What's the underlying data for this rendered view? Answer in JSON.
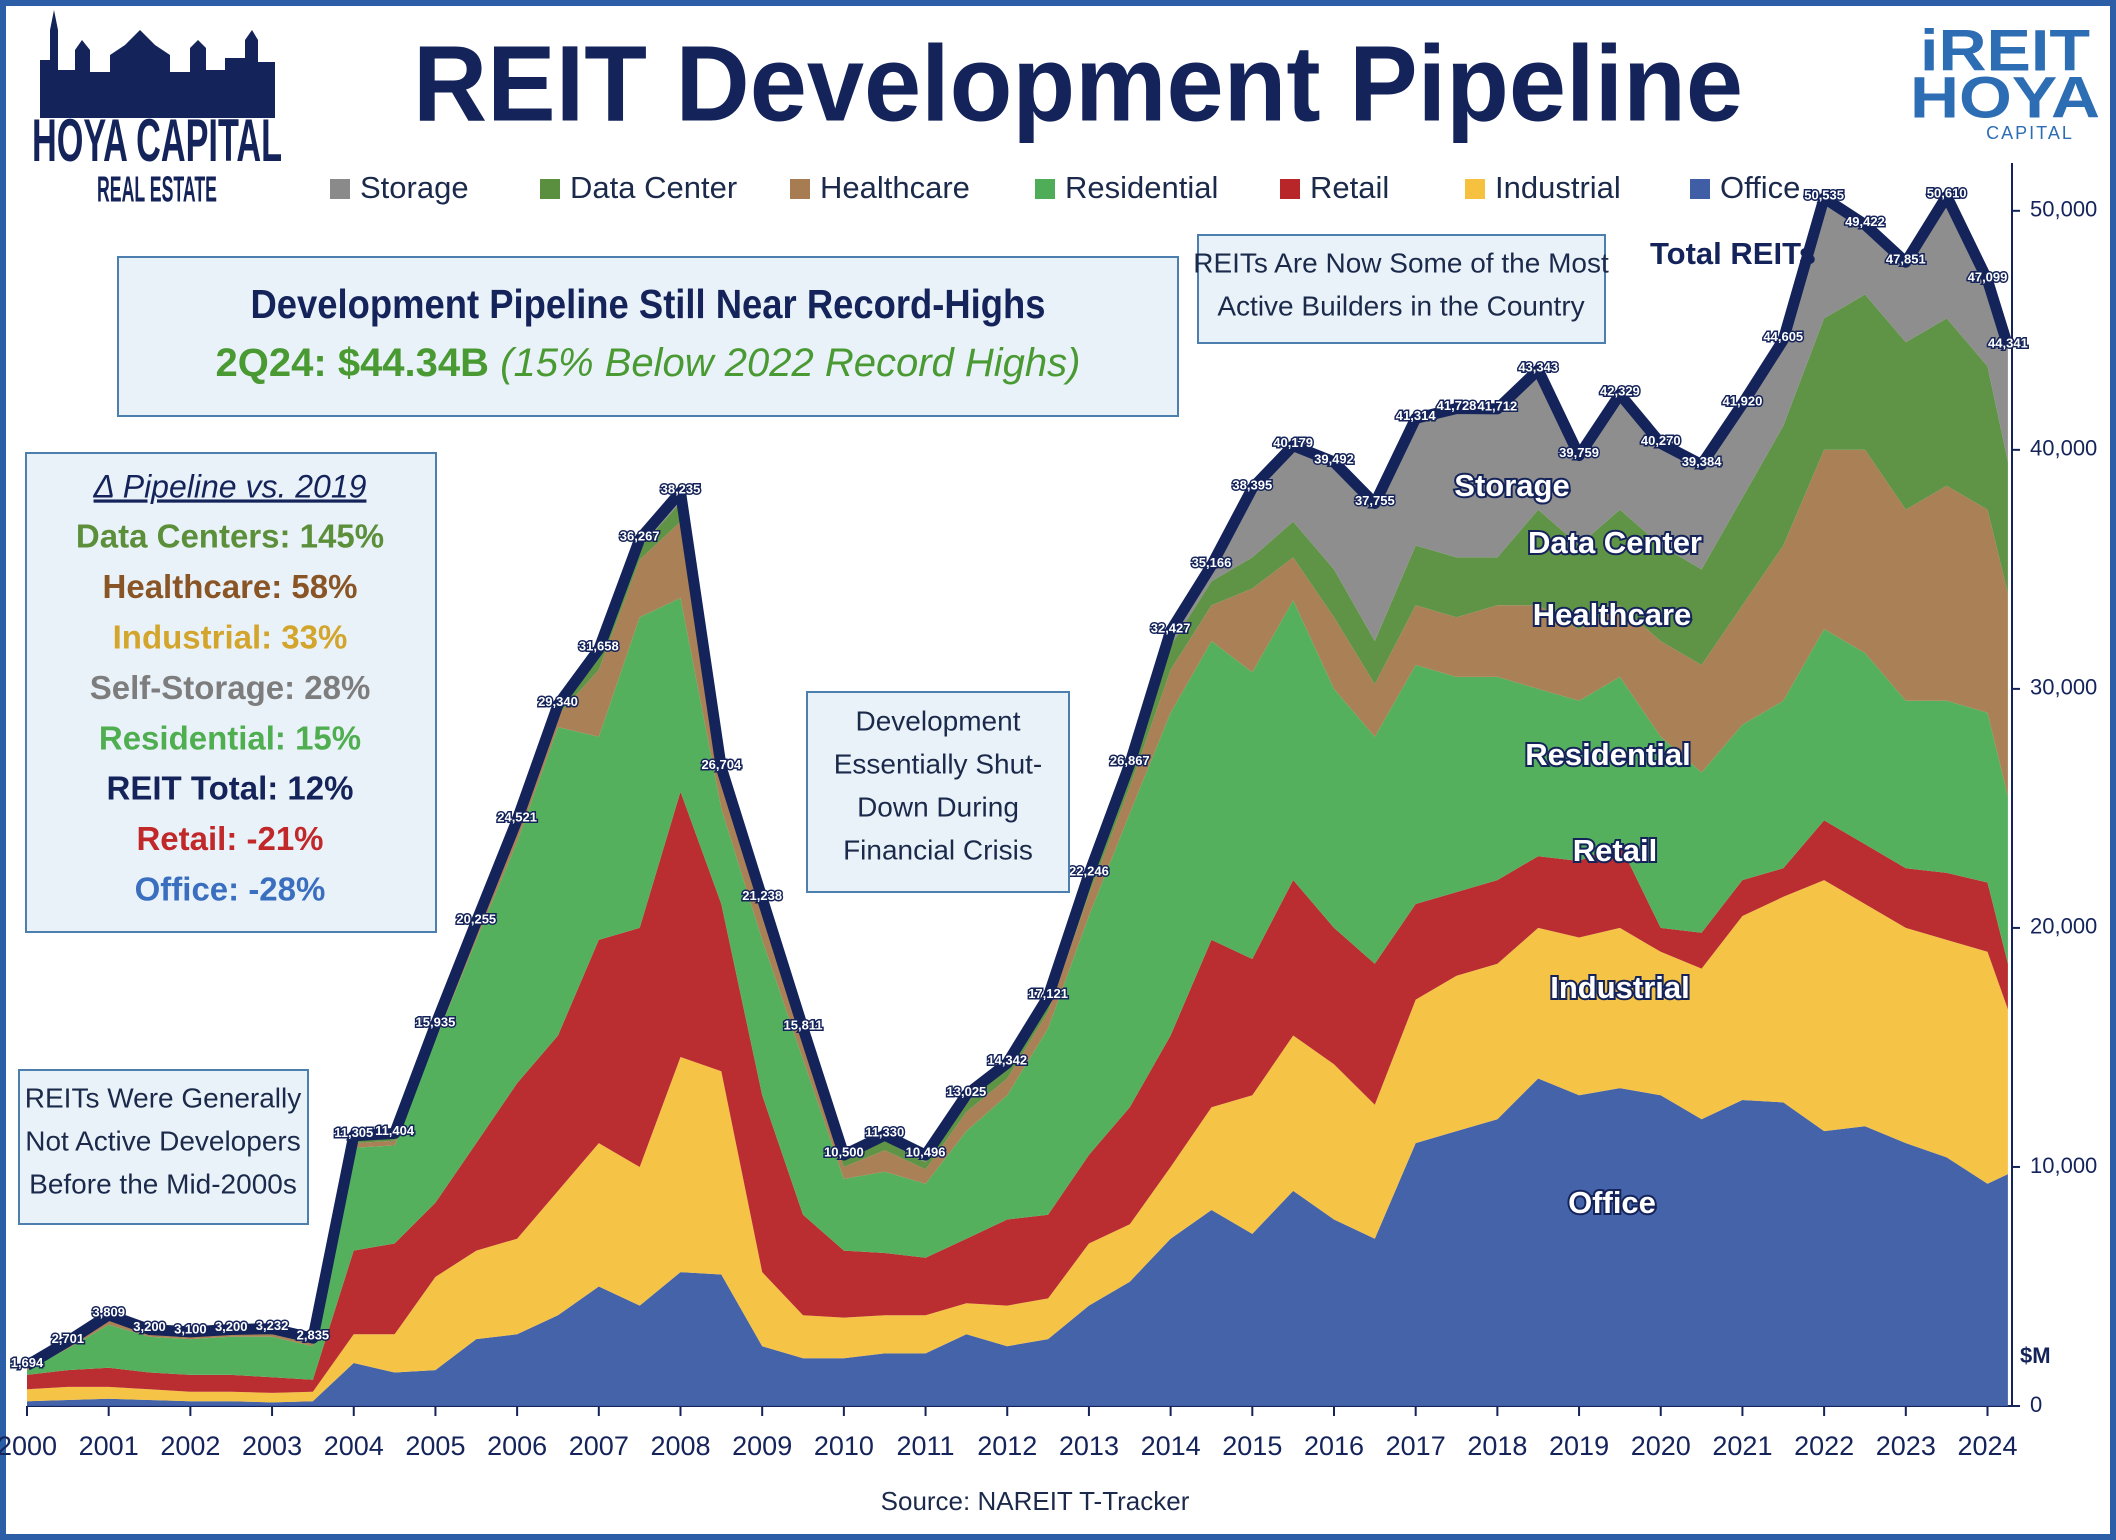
{
  "chart_data": {
    "type": "stacked-area",
    "title": "REIT Development Pipeline",
    "logos": {
      "left_top": "HOYA CAPITAL",
      "left_bottom": "REAL ESTATE",
      "right_top": "iREIT",
      "right_middle": "HOYA",
      "right_bottom": "CAPITAL"
    },
    "headline": {
      "title": "Development Pipeline Still Near Record-Highs",
      "value": "2Q24: $44.34B",
      "note": "(15% Below 2022 Record Highs)"
    },
    "delta_box": {
      "title": "Δ Pipeline vs. 2019",
      "items": [
        {
          "text": "Data Centers: 145%",
          "color": "#5b8f3a"
        },
        {
          "text": "Healthcare: 58%",
          "color": "#8a5526"
        },
        {
          "text": "Industrial: 33%",
          "color": "#d3a52c"
        },
        {
          "text": "Self-Storage: 28%",
          "color": "#7d7d7d"
        },
        {
          "text": "Residential: 15%",
          "color": "#4fae4f"
        },
        {
          "text": "REIT Total: 12%",
          "color": "#14235a"
        },
        {
          "text": "Retail: -21%",
          "color": "#c0282a"
        },
        {
          "text": "Office: -28%",
          "color": "#3a6fc0"
        }
      ]
    },
    "annotations": {
      "builders": [
        "REITs Are Now Some of the Most",
        "Active Builders in the Country"
      ],
      "crisis": [
        "Development",
        "Essentially Shut-",
        "Down During",
        "Financial Crisis"
      ],
      "early": [
        "REITs Were Generally",
        "Not Active Developers",
        "Before the Mid-2000s"
      ]
    },
    "source": "Source: NAREIT T-Tracker",
    "y_unit": "$M",
    "x": [
      2000,
      2000.5,
      2001,
      2001.5,
      2002,
      2002.5,
      2003,
      2003.5,
      2004,
      2004.5,
      2005,
      2005.5,
      2006,
      2006.5,
      2007,
      2007.5,
      2008,
      2008.5,
      2009,
      2009.5,
      2010,
      2010.5,
      2011,
      2011.5,
      2012,
      2012.5,
      2013,
      2013.5,
      2014,
      2014.5,
      2015,
      2015.5,
      2016,
      2016.5,
      2017,
      2017.5,
      2018,
      2018.5,
      2019,
      2019.5,
      2020,
      2020.5,
      2021,
      2021.5,
      2022,
      2022.5,
      2023,
      2023.5,
      2024,
      2024.25
    ],
    "xlim": [
      2000,
      2024.3
    ],
    "xticks": [
      2000,
      2001,
      2002,
      2003,
      2004,
      2005,
      2006,
      2007,
      2008,
      2009,
      2010,
      2011,
      2012,
      2013,
      2014,
      2015,
      2016,
      2017,
      2018,
      2019,
      2020,
      2021,
      2022,
      2023,
      2024
    ],
    "ylim": [
      0,
      52000
    ],
    "yticks": [
      0,
      {
        "value": 10000,
        "label": "10,000"
      },
      {
        "value": 20000,
        "label": "20,000"
      },
      {
        "value": 30000,
        "label": "30,000"
      },
      {
        "value": 40000,
        "label": "40,000"
      },
      {
        "value": 50000,
        "label": "50,000"
      }
    ],
    "series": [
      {
        "name": "Office",
        "color": "#3f5ea6",
        "values": [
          200,
          250,
          300,
          250,
          200,
          200,
          150,
          200,
          1800,
          1400,
          1500,
          2800,
          3000,
          3800,
          5000,
          4200,
          5600,
          5500,
          2500,
          2000,
          2000,
          2200,
          2200,
          3000,
          2500,
          2800,
          4200,
          5200,
          7000,
          8200,
          7200,
          9000,
          7800,
          7000,
          11000,
          11500,
          12000,
          13700,
          13000,
          13300,
          13000,
          12000,
          12800,
          12700,
          11500,
          11700,
          11000,
          10400,
          9300,
          9700
        ]
      },
      {
        "name": "Industrial",
        "color": "#f5c13f",
        "values": [
          500,
          550,
          500,
          450,
          400,
          400,
          400,
          400,
          1200,
          1600,
          3900,
          3700,
          4000,
          5200,
          6000,
          5800,
          9000,
          8500,
          3100,
          1800,
          1700,
          1600,
          1600,
          1300,
          1700,
          1700,
          2600,
          2400,
          3000,
          4300,
          5800,
          6500,
          6500,
          5600,
          6000,
          6500,
          6500,
          6300,
          6600,
          6700,
          6000,
          6300,
          7700,
          8600,
          10500,
          9300,
          9000,
          9100,
          9700,
          6900
        ]
      },
      {
        "name": "Retail",
        "color": "#b8262a",
        "values": [
          600,
          700,
          800,
          700,
          700,
          700,
          650,
          500,
          3500,
          3800,
          3100,
          4500,
          6500,
          6500,
          8500,
          10000,
          11100,
          7000,
          7400,
          4200,
          2800,
          2600,
          2400,
          2700,
          3600,
          3500,
          3700,
          4900,
          5500,
          7000,
          5700,
          6500,
          5700,
          5900,
          4000,
          3500,
          3500,
          3000,
          3200,
          3500,
          1000,
          1500,
          1500,
          1200,
          2500,
          2500,
          2500,
          2800,
          2900,
          1900
        ]
      },
      {
        "name": "Residential",
        "color": "#4fad58",
        "values": [
          200,
          900,
          1800,
          1500,
          1500,
          1600,
          1700,
          1400,
          4300,
          4100,
          6800,
          8500,
          10100,
          12900,
          8500,
          13000,
          8100,
          4000,
          6500,
          6500,
          3000,
          3400,
          3100,
          4500,
          5200,
          7800,
          10000,
          12300,
          13500,
          12500,
          12000,
          11700,
          10000,
          9500,
          10000,
          9000,
          8500,
          7000,
          6700,
          7000,
          8000,
          6700,
          6500,
          7000,
          8000,
          8000,
          7000,
          7200,
          7100,
          7000
        ]
      },
      {
        "name": "Healthcare",
        "color": "#a77c52",
        "values": [
          100,
          100,
          200,
          100,
          100,
          100,
          100,
          100,
          200,
          200,
          300,
          400,
          500,
          500,
          2800,
          2400,
          3200,
          1000,
          1100,
          800,
          500,
          900,
          600,
          800,
          700,
          700,
          900,
          1100,
          1800,
          1500,
          3500,
          1800,
          3000,
          2200,
          2500,
          2500,
          3000,
          3500,
          3000,
          3000,
          4000,
          4500,
          5000,
          6500,
          7500,
          8500,
          8000,
          9000,
          8500,
          8500
        ]
      },
      {
        "name": "Data Center",
        "color": "#5a8f3f",
        "values": [
          50,
          100,
          100,
          100,
          100,
          100,
          100,
          100,
          100,
          100,
          100,
          100,
          200,
          200,
          500,
          500,
          800,
          400,
          400,
          300,
          300,
          400,
          300,
          400,
          400,
          400,
          500,
          600,
          1000,
          1000,
          1300,
          1500,
          2000,
          1800,
          2500,
          2500,
          2000,
          4000,
          3500,
          4000,
          4000,
          4000,
          4500,
          5000,
          5500,
          6500,
          7000,
          7000,
          6000,
          5500
        ]
      },
      {
        "name": "Storage",
        "color": "#8a8a8a",
        "values": [
          44,
          101,
          109,
          100,
          100,
          100,
          132,
          135,
          205,
          204,
          235,
          255,
          221,
          240,
          358,
          367,
          435,
          304,
          238,
          211,
          200,
          230,
          296,
          325,
          242,
          221,
          346,
          367,
          627,
          666,
          2895,
          3179,
          4492,
          5755,
          5314,
          6228,
          6212,
          5843,
          3759,
          4829,
          4270,
          4384,
          3920,
          3605,
          5035,
          2922,
          3351,
          5110,
          3599,
          4841
        ]
      }
    ],
    "total": {
      "name": "Total REITs",
      "color": "#14235a",
      "values": [
        1694,
        2701,
        3809,
        3200,
        3100,
        3200,
        3232,
        2835,
        11305,
        11404,
        15935,
        20255,
        24521,
        29340,
        31658,
        36267,
        38235,
        26704,
        21238,
        15811,
        10500,
        11330,
        10496,
        13025,
        14342,
        17121,
        22246,
        26867,
        32427,
        35166,
        38395,
        40179,
        39492,
        37755,
        41314,
        41728,
        41712,
        43343,
        39759,
        42329,
        40270,
        39384,
        41920,
        44605,
        50535,
        49422,
        47851,
        50610,
        47099,
        44341
      ],
      "value_labels": [
        "1,694",
        "2,701",
        "3,809",
        "3,200",
        "3,100",
        "3,200",
        "3,232",
        "2,835",
        "11,305",
        "11,404",
        "15,935",
        "20,255",
        "24,521",
        "29,340",
        "31,658",
        "36,267",
        "38,235",
        "26,704",
        "21,238",
        "15,811",
        "10,500",
        "11,330",
        "10,496",
        "13,025",
        "14,342",
        "17,121",
        "22,246",
        "26,867",
        "32,427",
        "35,166",
        "38,395",
        "40,179",
        "39,492",
        "37,755",
        "41,314",
        "41,728",
        "41,712",
        "43,343",
        "39,759",
        "42,329",
        "40,270",
        "39,384",
        "41,920",
        "44,605",
        "50,535",
        "49,422",
        "47,851",
        "50,610",
        "47,099",
        "44,341"
      ]
    }
  }
}
